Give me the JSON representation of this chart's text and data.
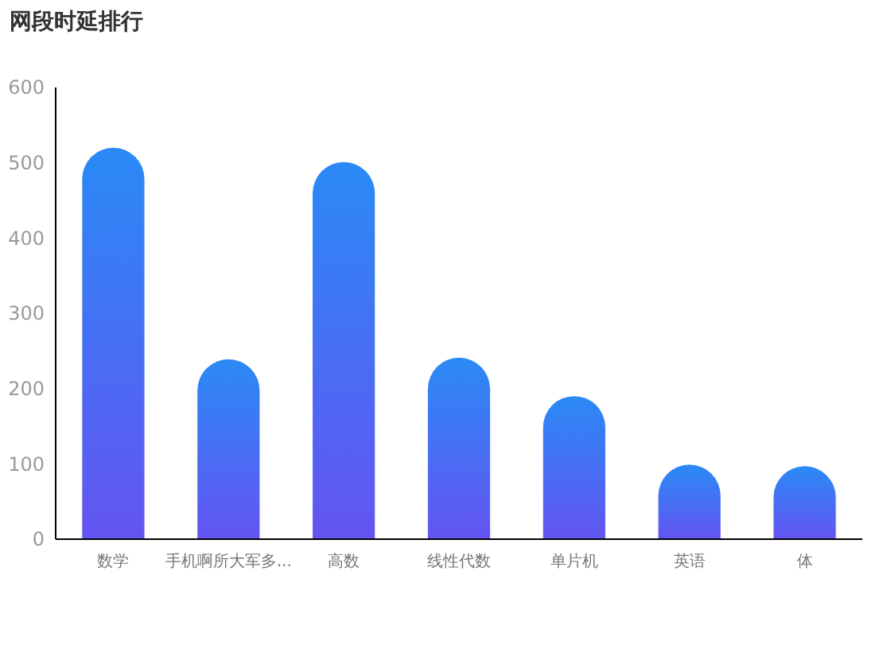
{
  "chart_data": {
    "type": "bar",
    "title": "网段时延排行",
    "categories": [
      "数学",
      "手机啊所大军多...",
      "高数",
      "线性代数",
      "单片机",
      "英语",
      "体"
    ],
    "series": [
      {
        "color": "#2a8af6",
        "values": [
          520,
          239,
          501,
          241,
          190,
          99,
          97
        ]
      }
    ],
    "ylim": [
      0,
      600
    ],
    "yticks": [
      0,
      100,
      200,
      300,
      400,
      500,
      600
    ],
    "grid": false
  }
}
